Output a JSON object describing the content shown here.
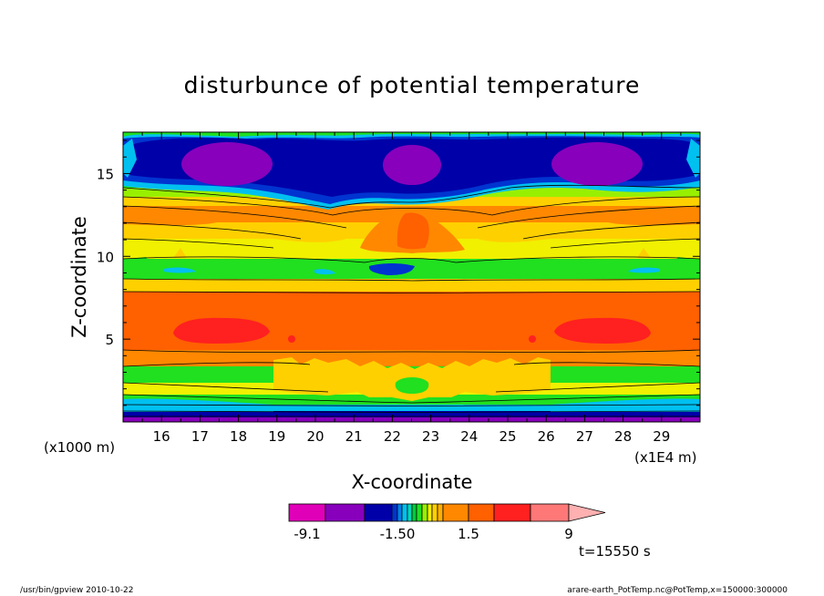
{
  "chart_data": {
    "type": "heatmap",
    "title": "disturbunce of potential temperature",
    "xlabel": "X-coordinate",
    "ylabel": "Z-coordinate",
    "x_scale_label": "(x1E4 m)",
    "y_scale_label": "(x1000 m)",
    "xlim": [
      15,
      30
    ],
    "ylim": [
      0,
      17.5
    ],
    "x_ticks": [
      {
        "value": 16,
        "label": "16"
      },
      {
        "value": 17,
        "label": "17"
      },
      {
        "value": 18,
        "label": "18"
      },
      {
        "value": 19,
        "label": "19"
      },
      {
        "value": 20,
        "label": "20"
      },
      {
        "value": 21,
        "label": "21"
      },
      {
        "value": 22,
        "label": "22"
      },
      {
        "value": 23,
        "label": "23"
      },
      {
        "value": 24,
        "label": "24"
      },
      {
        "value": 25,
        "label": "25"
      },
      {
        "value": 26,
        "label": "26"
      },
      {
        "value": 27,
        "label": "27"
      },
      {
        "value": 28,
        "label": "28"
      },
      {
        "value": 29,
        "label": "29"
      }
    ],
    "y_ticks": [
      {
        "value": 5,
        "label": "5"
      },
      {
        "value": 10,
        "label": "10"
      },
      {
        "value": 15,
        "label": "15"
      }
    ],
    "colorbar": {
      "levels": [
        -9,
        -6,
        -3,
        -1.5,
        -1.2,
        -0.9,
        -0.6,
        -0.3,
        0,
        0.3,
        0.6,
        0.9,
        1.2,
        1.5,
        3,
        6,
        9
      ],
      "colors": [
        "#e000b8",
        "#8800bc",
        "#0000a8",
        "#0034d0",
        "#0080e8",
        "#00c0f0",
        "#00d8c0",
        "#00cc40",
        "#20e020",
        "#98f000",
        "#f0f000",
        "#ffd000",
        "#ffb000",
        "#ff8800",
        "#ff6000",
        "#ff2020",
        "#ff7878",
        "#ffb0b0"
      ],
      "labels": [
        {
          "value": -9.1,
          "label": "-9.1"
        },
        {
          "value": -1.5,
          "label": "-1.50"
        },
        {
          "value": 1.5,
          "label": "1.5"
        },
        {
          "value": 9,
          "label": "9"
        }
      ]
    },
    "time_label": "t=15550 s",
    "footer_left": "/usr/bin/gpview   2010-10-22",
    "footer_right": "arare-earth_PotTemp.nc@PotTemp,x=150000:300000",
    "features": [
      {
        "name": "upper-minimum-left",
        "x": 18.1,
        "z": 15.3,
        "value": -7.5
      },
      {
        "name": "upper-minimum-center",
        "x": 22.6,
        "z": 15.2,
        "value": -7.5
      },
      {
        "name": "upper-minimum-right",
        "x": 27.2,
        "z": 15.3,
        "value": -7.5
      },
      {
        "name": "upper-maximum-center",
        "x": 22.6,
        "z": 11.4,
        "value": 4.5
      },
      {
        "name": "mid-maximum-left",
        "x": 18.3,
        "z": 5.6,
        "value": 7.5
      },
      {
        "name": "mid-maximum-right",
        "x": 26.9,
        "z": 5.6,
        "value": 7.5
      },
      {
        "name": "low-minimum-center",
        "x": 22.6,
        "z": 2.2,
        "value": 0.4
      }
    ]
  }
}
